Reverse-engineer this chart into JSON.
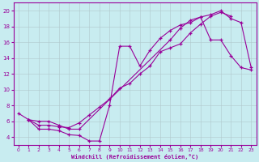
{
  "xlabel": "Windchill (Refroidissement éolien,°C)",
  "bg_color": "#c8ecf0",
  "line_color": "#990099",
  "grid_color": "#b0c8cc",
  "xlim": [
    -0.5,
    23.5
  ],
  "ylim": [
    3.0,
    21.0
  ],
  "xticks": [
    0,
    1,
    2,
    3,
    4,
    5,
    6,
    7,
    8,
    9,
    10,
    11,
    12,
    13,
    14,
    15,
    16,
    17,
    18,
    19,
    20,
    21,
    22,
    23
  ],
  "yticks": [
    4,
    6,
    8,
    10,
    12,
    14,
    16,
    18,
    20
  ],
  "lineA_x": [
    0,
    1,
    2,
    3,
    4,
    5,
    6,
    7,
    8,
    9,
    10,
    11,
    12,
    13,
    14,
    15,
    16,
    17,
    18,
    19,
    20,
    21,
    22,
    23
  ],
  "lineA_y": [
    7.0,
    6.2,
    5.0,
    5.0,
    4.8,
    4.3,
    4.2,
    3.5,
    3.5,
    8.0,
    15.5,
    15.5,
    13.0,
    15.0,
    16.5,
    17.5,
    18.2,
    18.5,
    19.2,
    19.5,
    20.0,
    19.0,
    18.5,
    12.8
  ],
  "lineB_x": [
    1,
    2,
    3,
    4,
    5,
    6,
    7,
    8,
    9,
    10,
    11,
    12,
    13,
    14,
    15,
    16,
    17,
    18,
    19,
    20,
    21
  ],
  "lineB_y": [
    6.2,
    5.5,
    5.5,
    5.3,
    5.2,
    5.8,
    6.8,
    7.8,
    8.8,
    10.2,
    10.8,
    12.0,
    13.0,
    14.8,
    15.3,
    15.8,
    17.2,
    18.3,
    19.3,
    19.8,
    19.3
  ],
  "lineC_x": [
    1,
    2,
    3,
    4,
    5,
    6,
    15,
    16,
    17,
    18,
    19,
    20,
    21,
    22,
    23
  ],
  "lineC_y": [
    6.2,
    6.0,
    6.0,
    5.5,
    5.0,
    5.0,
    16.3,
    17.8,
    18.8,
    19.2,
    16.3,
    16.3,
    14.3,
    12.8,
    12.5
  ]
}
